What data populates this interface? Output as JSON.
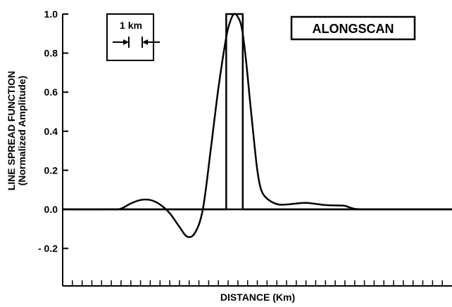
{
  "chart_data": {
    "type": "line",
    "title": "",
    "xlabel": "DISTANCE (Km)",
    "ylabel_line1": "LINE SPREAD FUNCTION",
    "ylabel_line2": "(Normalized Amplitude)",
    "ylim": [
      -0.4,
      1.0
    ],
    "xlim": [
      0,
      20
    ],
    "yticks": [
      1.0,
      0.8,
      0.6,
      0.4,
      0.2,
      0.0,
      -0.2
    ],
    "ytick_labels": [
      "1.0",
      "0.8",
      "0.6",
      "0.4",
      "0.2",
      "0.0",
      "- 0.2"
    ],
    "x_minor_tick_step_km": 0.5,
    "legend_box_label": "ALONGSCAN",
    "scale_bar_label": "1 km",
    "grid": false,
    "series": [
      {
        "style": "step",
        "x": [
          0,
          8.4,
          8.4,
          9.25,
          9.25,
          20
        ],
        "y": [
          0,
          0,
          1,
          1,
          0,
          0
        ]
      },
      {
        "style": "smooth",
        "x": [
          0,
          2.5,
          3.0,
          3.5,
          4.0,
          4.5,
          5.0,
          5.5,
          6.0,
          6.4,
          6.8,
          7.2,
          7.6,
          8.0,
          8.4,
          8.6,
          8.8,
          9.0,
          9.2,
          9.4,
          9.6,
          9.8,
          10.0,
          10.2,
          10.5,
          11.0,
          11.5,
          12.0,
          12.5,
          13.0,
          13.5,
          14.0,
          14.5,
          15.0,
          16.0,
          20.0
        ],
        "y": [
          0,
          0,
          0.004,
          0.03,
          0.048,
          0.048,
          0.025,
          -0.02,
          -0.09,
          -0.14,
          -0.12,
          0.0,
          0.3,
          0.62,
          0.88,
          0.96,
          1.0,
          0.985,
          0.93,
          0.78,
          0.58,
          0.38,
          0.2,
          0.1,
          0.055,
          0.027,
          0.025,
          0.03,
          0.033,
          0.028,
          0.022,
          0.02,
          0.018,
          0.003,
          0,
          0
        ]
      }
    ]
  }
}
